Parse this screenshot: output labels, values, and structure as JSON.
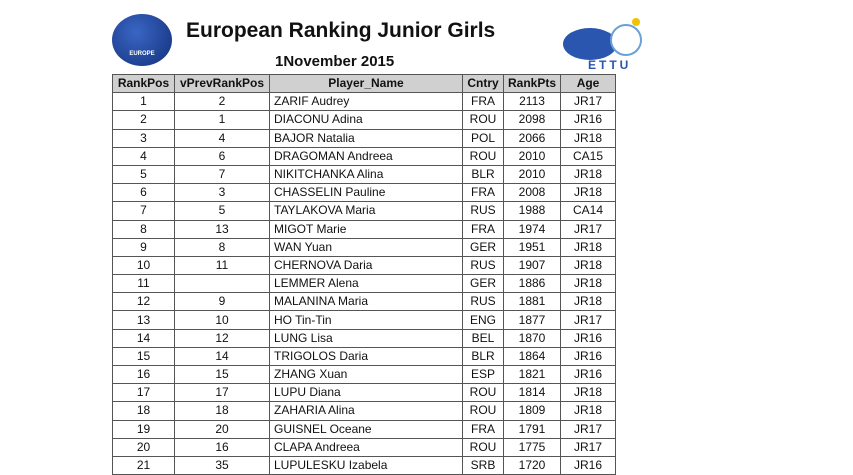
{
  "header": {
    "title": "European Ranking Junior Girls",
    "date": "1November 2015",
    "left_logo": "EUROPE",
    "right_logo": "ETTU"
  },
  "table": {
    "columns": [
      "RankPos",
      "vPrevRankPos",
      "Player_Name",
      "Cntry",
      "RankPts",
      "Age"
    ],
    "rows": [
      [
        "1",
        "2",
        "ZARIF Audrey",
        "FRA",
        "2113",
        "JR17"
      ],
      [
        "2",
        "1",
        "DIACONU Adina",
        "ROU",
        "2098",
        "JR16"
      ],
      [
        "3",
        "4",
        "BAJOR Natalia",
        "POL",
        "2066",
        "JR18"
      ],
      [
        "4",
        "6",
        "DRAGOMAN Andreea",
        "ROU",
        "2010",
        "CA15"
      ],
      [
        "5",
        "7",
        "NIKITCHANKA Alina",
        "BLR",
        "2010",
        "JR18"
      ],
      [
        "6",
        "3",
        "CHASSELIN Pauline",
        "FRA",
        "2008",
        "JR18"
      ],
      [
        "7",
        "5",
        "TAYLAKOVA Maria",
        "RUS",
        "1988",
        "CA14"
      ],
      [
        "8",
        "13",
        "MIGOT Marie",
        "FRA",
        "1974",
        "JR17"
      ],
      [
        "9",
        "8",
        "WAN Yuan",
        "GER",
        "1951",
        "JR18"
      ],
      [
        "10",
        "11",
        "CHERNOVA Daria",
        "RUS",
        "1907",
        "JR18"
      ],
      [
        "11",
        null,
        "LEMMER Alena",
        "GER",
        "1886",
        "JR18"
      ],
      [
        "12",
        "9",
        "MALANINA Maria",
        "RUS",
        "1881",
        "JR18"
      ],
      [
        "13",
        "10",
        "HO Tin-Tin",
        "ENG",
        "1877",
        "JR17"
      ],
      [
        "14",
        "12",
        "LUNG Lisa",
        "BEL",
        "1870",
        "JR16"
      ],
      [
        "15",
        "14",
        "TRIGOLOS Daria",
        "BLR",
        "1864",
        "JR16"
      ],
      [
        "16",
        "15",
        "ZHANG Xuan",
        "ESP",
        "1821",
        "JR16"
      ],
      [
        "17",
        "17",
        "LUPU Diana",
        "ROU",
        "1814",
        "JR18"
      ],
      [
        "18",
        "18",
        "ZAHARIA Alina",
        "ROU",
        "1809",
        "JR18"
      ],
      [
        "19",
        "20",
        "GUISNEL Oceane",
        "FRA",
        "1791",
        "JR17"
      ],
      [
        "20",
        "16",
        "CLAPA Andreea",
        "ROU",
        "1775",
        "JR17"
      ],
      [
        "21",
        "35",
        "LUPULESKU Izabela",
        "SRB",
        "1720",
        "JR16"
      ]
    ]
  }
}
